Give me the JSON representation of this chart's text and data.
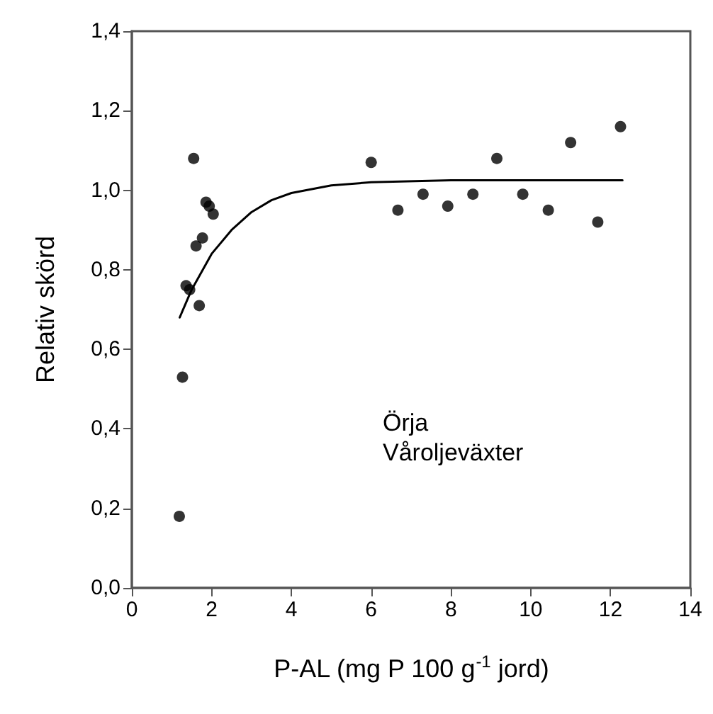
{
  "chart_data": {
    "type": "scatter",
    "xlabel": "P-AL (mg P 100 g$^{-1}$ jord)",
    "ylabel": "Relativ skörd",
    "annotations": [
      "Örja",
      "Våroljeväxter"
    ],
    "series": [
      {
        "color": "#000000",
        "marker": "circle",
        "x": [
          1.19,
          1.27,
          1.36,
          1.45,
          1.55,
          1.61,
          1.69,
          1.77,
          1.86,
          1.94,
          2.04,
          6.0,
          6.67,
          7.3,
          7.92,
          8.55,
          9.15,
          9.8,
          10.44,
          11.0,
          11.68,
          12.25
        ],
        "values": [
          0.18,
          0.53,
          0.76,
          0.75,
          1.08,
          0.86,
          0.71,
          0.88,
          0.97,
          0.96,
          0.94,
          1.07,
          0.95,
          0.99,
          0.96,
          0.99,
          1.08,
          0.99,
          0.95,
          1.12,
          0.92,
          1.16
        ]
      },
      {
        "type": "line",
        "color": "#000000",
        "marker": "none",
        "line_style": "solid",
        "x": [
          1.2,
          1.5,
          2.0,
          2.5,
          3.0,
          3.5,
          4.0,
          5.0,
          6.0,
          8.0,
          12.3
        ],
        "values": [
          0.68,
          0.75,
          0.84,
          0.9,
          0.945,
          0.975,
          0.993,
          1.012,
          1.02,
          1.025,
          1.025
        ]
      }
    ],
    "xlim": [
      0,
      14
    ],
    "xticks": [
      0,
      2,
      4,
      6,
      8,
      10,
      12,
      14
    ],
    "ylim": [
      0,
      1.4
    ],
    "yticks": [
      {
        "value": 0,
        "label": "0,0"
      },
      {
        "value": 0.2,
        "label": "0,2"
      },
      {
        "value": 0.4,
        "label": "0,4"
      },
      {
        "value": 0.6,
        "label": "0,6"
      },
      {
        "value": 0.8,
        "label": "0,8"
      },
      {
        "value": 1.0,
        "label": "1,0"
      },
      {
        "value": 1.2,
        "label": "1,2"
      },
      {
        "value": 1.4,
        "label": "1,4"
      }
    ],
    "grid": false
  }
}
